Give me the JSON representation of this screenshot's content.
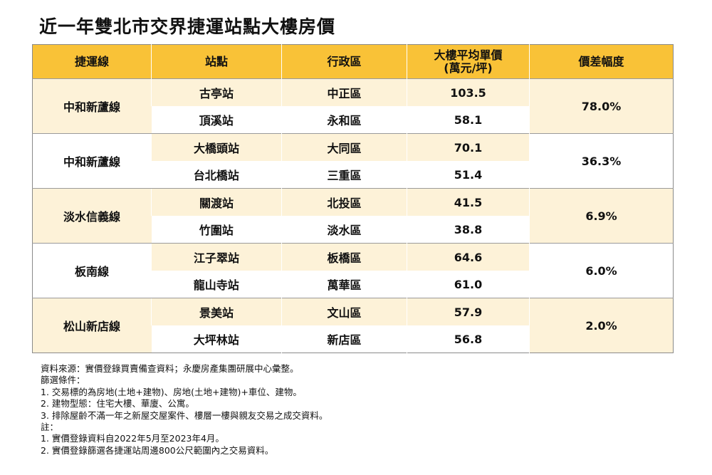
{
  "title": "近一年雙北市交界捷運站點大樓房價",
  "table": {
    "headers": {
      "line": "捷運線",
      "station": "站點",
      "district": "行政區",
      "price_l1": "大樓平均單價",
      "price_l2": "(萬元/坪)",
      "diff": "價差幅度"
    },
    "groups": [
      {
        "line": "中和新蘆線",
        "diff": "78.0%",
        "rows": [
          {
            "station": "古亭站",
            "district": "中正區",
            "price": "103.5"
          },
          {
            "station": "頂溪站",
            "district": "永和區",
            "price": "58.1"
          }
        ]
      },
      {
        "line": "中和新蘆線",
        "diff": "36.3%",
        "rows": [
          {
            "station": "大橋頭站",
            "district": "大同區",
            "price": "70.1"
          },
          {
            "station": "台北橋站",
            "district": "三重區",
            "price": "51.4"
          }
        ]
      },
      {
        "line": "淡水信義線",
        "diff": "6.9%",
        "rows": [
          {
            "station": "關渡站",
            "district": "北投區",
            "price": "41.5"
          },
          {
            "station": "竹圍站",
            "district": "淡水區",
            "price": "38.8"
          }
        ]
      },
      {
        "line": "板南線",
        "diff": "6.0%",
        "rows": [
          {
            "station": "江子翠站",
            "district": "板橋區",
            "price": "64.6"
          },
          {
            "station": "龍山寺站",
            "district": "萬華區",
            "price": "61.0"
          }
        ]
      },
      {
        "line": "松山新店線",
        "diff": "2.0%",
        "rows": [
          {
            "station": "景美站",
            "district": "文山區",
            "price": "57.9"
          },
          {
            "station": "大坪林站",
            "district": "新店區",
            "price": "56.8"
          }
        ]
      }
    ]
  },
  "notes": {
    "source": "資料來源：實價登錄買賣備查資料；永慶房產集團研展中心彙整。",
    "filter_title": "篩選條件：",
    "filter_1": "1. 交易標的為房地(土地+建物)、房地(土地+建物)+車位、建物。",
    "filter_2": "2. 建物型態：住宅大樓、華廈、公寓。",
    "filter_3": "3. 排除屋齡不滿一年之新屋交屋案件、樓層一樓與親友交易之成交資料。",
    "note_title": "註：",
    "note_1": "1. 實價登錄資料自2022年5月至2023年4月。",
    "note_2": "2. 實價登錄篩選各捷運站周邊800公尺範圍內之交易資料。"
  }
}
